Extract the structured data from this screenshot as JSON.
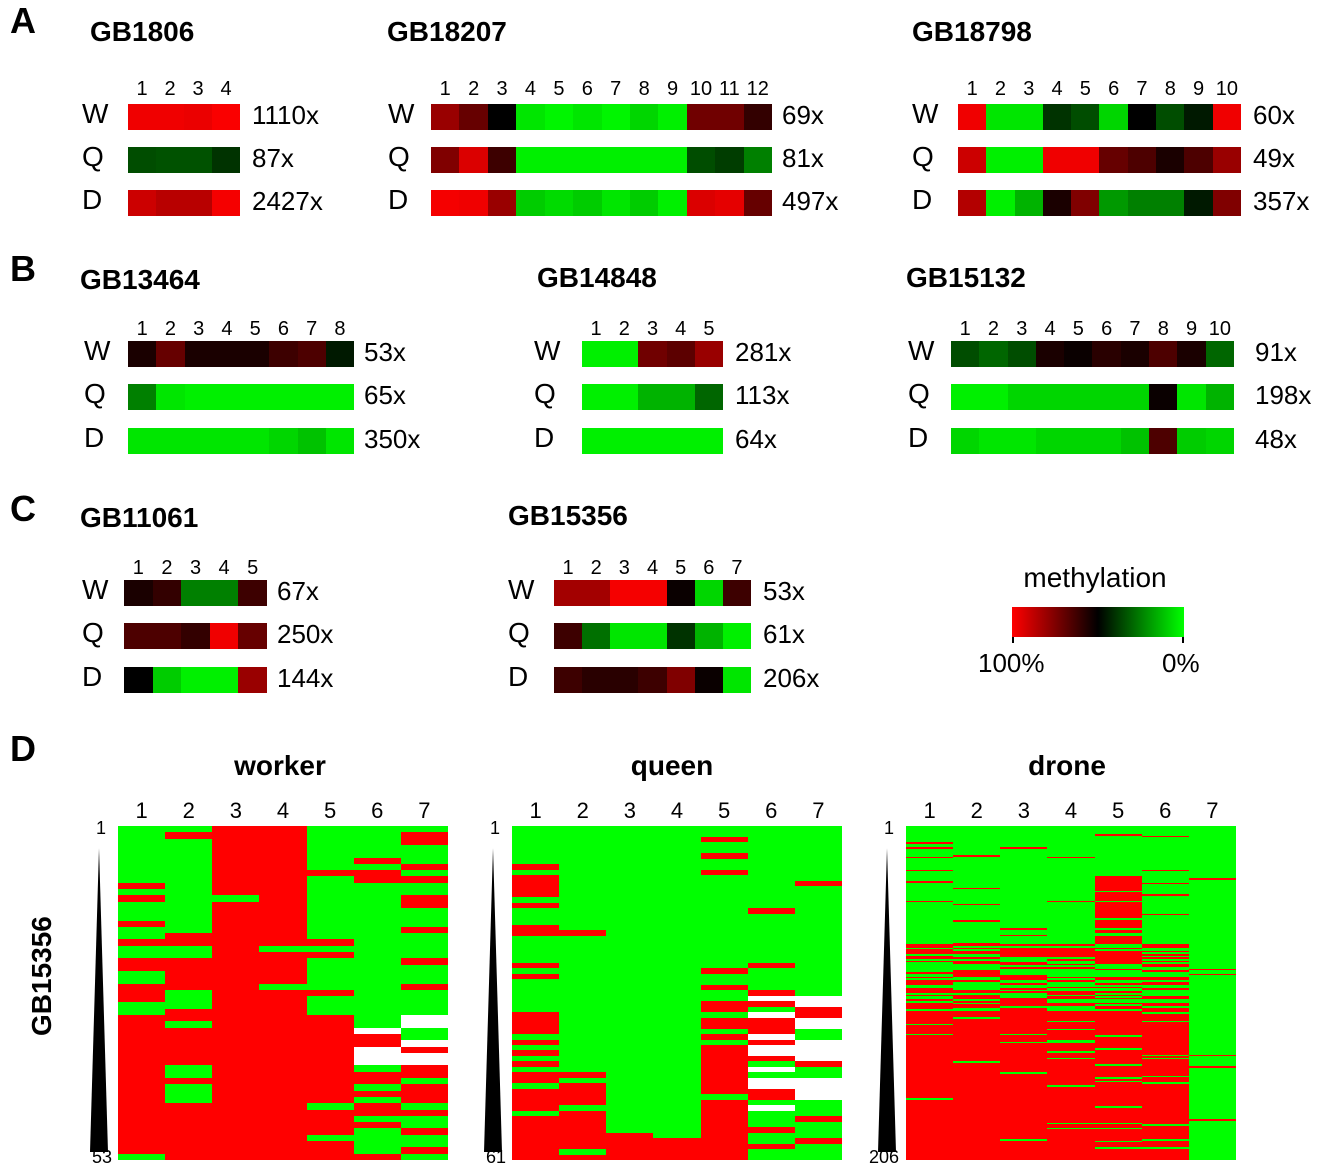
{
  "panels": {
    "A": "A",
    "B": "B",
    "C": "C",
    "D": "D"
  },
  "castes": [
    "W",
    "Q",
    "D"
  ],
  "colors": {
    "methylated": "#ff0000",
    "mid": "#000000",
    "unmethylated": "#00ff00"
  },
  "genes": [
    {
      "id": "GB1806",
      "positions": [
        "1",
        "2",
        "3",
        "4"
      ],
      "rows": [
        {
          "caste": "W",
          "coverage": "1110x",
          "levels": [
            0.97,
            0.97,
            0.96,
            0.99
          ]
        },
        {
          "caste": "Q",
          "coverage": "87x",
          "levels": [
            0.35,
            0.34,
            0.34,
            0.4
          ]
        },
        {
          "caste": "D",
          "coverage": "2427x",
          "levels": [
            0.9,
            0.86,
            0.86,
            0.98
          ]
        }
      ]
    },
    {
      "id": "GB18207",
      "positions": [
        "1",
        "2",
        "3",
        "4",
        "5",
        "6",
        "7",
        "8",
        "9",
        "10",
        "11",
        "12"
      ],
      "rows": [
        {
          "caste": "W",
          "coverage": "69x",
          "levels": [
            0.8,
            0.7,
            0.5,
            0.05,
            0.02,
            0.05,
            0.02,
            0.08,
            0.03,
            0.72,
            0.72,
            0.6
          ]
        },
        {
          "caste": "Q",
          "coverage": "81x",
          "levels": [
            0.75,
            0.93,
            0.62,
            0.03,
            0.03,
            0.03,
            0.03,
            0.03,
            0.03,
            0.35,
            0.38,
            0.25
          ]
        },
        {
          "caste": "D",
          "coverage": "497x",
          "levels": [
            0.98,
            0.97,
            0.8,
            0.1,
            0.07,
            0.1,
            0.05,
            0.1,
            0.03,
            0.93,
            0.95,
            0.7
          ]
        }
      ]
    },
    {
      "id": "GB18798",
      "positions": [
        "1",
        "2",
        "3",
        "4",
        "5",
        "6",
        "7",
        "8",
        "9",
        "10"
      ],
      "rows": [
        {
          "caste": "W",
          "coverage": "60x",
          "levels": [
            0.97,
            0.05,
            0.05,
            0.4,
            0.35,
            0.08,
            0.5,
            0.35,
            0.45,
            0.97
          ]
        },
        {
          "caste": "Q",
          "coverage": "49x",
          "levels": [
            0.9,
            0.03,
            0.03,
            0.97,
            0.97,
            0.7,
            0.65,
            0.55,
            0.65,
            0.8
          ]
        },
        {
          "caste": "D",
          "coverage": "357x",
          "levels": [
            0.85,
            0.03,
            0.15,
            0.55,
            0.75,
            0.2,
            0.25,
            0.25,
            0.45,
            0.75
          ]
        }
      ]
    },
    {
      "id": "GB13464",
      "positions": [
        "1",
        "2",
        "3",
        "4",
        "5",
        "6",
        "7",
        "8"
      ],
      "rows": [
        {
          "caste": "W",
          "coverage": "53x",
          "levels": [
            0.55,
            0.7,
            0.55,
            0.55,
            0.55,
            0.62,
            0.65,
            0.45
          ]
        },
        {
          "caste": "Q",
          "coverage": "65x",
          "levels": [
            0.25,
            0.05,
            0.03,
            0.03,
            0.03,
            0.03,
            0.03,
            0.03
          ]
        },
        {
          "caste": "D",
          "coverage": "350x",
          "levels": [
            0.05,
            0.05,
            0.05,
            0.05,
            0.05,
            0.08,
            0.12,
            0.05
          ]
        }
      ]
    },
    {
      "id": "GB14848",
      "positions": [
        "1",
        "2",
        "3",
        "4",
        "5"
      ],
      "rows": [
        {
          "caste": "W",
          "coverage": "281x",
          "levels": [
            0.03,
            0.03,
            0.72,
            0.68,
            0.8
          ]
        },
        {
          "caste": "Q",
          "coverage": "113x",
          "levels": [
            0.03,
            0.03,
            0.15,
            0.15,
            0.3
          ]
        },
        {
          "caste": "D",
          "coverage": "64x",
          "levels": [
            0.03,
            0.03,
            0.03,
            0.03,
            0.03
          ]
        }
      ]
    },
    {
      "id": "GB15132",
      "positions": [
        "1",
        "2",
        "3",
        "4",
        "5",
        "6",
        "7",
        "8",
        "9",
        "10"
      ],
      "rows": [
        {
          "caste": "W",
          "coverage": "91x",
          "levels": [
            0.35,
            0.3,
            0.35,
            0.55,
            0.52,
            0.58,
            0.55,
            0.65,
            0.55,
            0.3
          ]
        },
        {
          "caste": "Q",
          "coverage": "198x",
          "levels": [
            0.03,
            0.03,
            0.08,
            0.08,
            0.08,
            0.08,
            0.08,
            0.52,
            0.05,
            0.15
          ]
        },
        {
          "caste": "D",
          "coverage": "48x",
          "levels": [
            0.08,
            0.05,
            0.05,
            0.08,
            0.08,
            0.08,
            0.12,
            0.65,
            0.1,
            0.08
          ]
        }
      ]
    },
    {
      "id": "GB11061",
      "positions": [
        "1",
        "2",
        "3",
        "4",
        "5"
      ],
      "rows": [
        {
          "caste": "W",
          "coverage": "67x",
          "levels": [
            0.55,
            0.6,
            0.25,
            0.25,
            0.62
          ]
        },
        {
          "caste": "Q",
          "coverage": "250x",
          "levels": [
            0.65,
            0.65,
            0.6,
            0.97,
            0.7
          ]
        },
        {
          "caste": "D",
          "coverage": "144x",
          "levels": [
            0.5,
            0.1,
            0.03,
            0.03,
            0.8
          ]
        }
      ]
    },
    {
      "id": "GB15356",
      "positions": [
        "1",
        "2",
        "3",
        "4",
        "5",
        "6",
        "7"
      ],
      "rows": [
        {
          "caste": "W",
          "coverage": "53x",
          "levels": [
            0.82,
            0.82,
            0.98,
            0.98,
            0.52,
            0.08,
            0.62
          ]
        },
        {
          "caste": "Q",
          "coverage": "61x",
          "levels": [
            0.62,
            0.28,
            0.05,
            0.05,
            0.4,
            0.15,
            0.03
          ]
        },
        {
          "caste": "D",
          "coverage": "206x",
          "levels": [
            0.62,
            0.58,
            0.58,
            0.62,
            0.75,
            0.52,
            0.05
          ]
        }
      ]
    }
  ],
  "legend": {
    "title": "methylation",
    "left_label": "100%",
    "right_label": "0%"
  },
  "panel_d": {
    "gene_label": "GB15356",
    "columns": [
      "1",
      "2",
      "3",
      "4",
      "5",
      "6",
      "7"
    ],
    "heatmaps": [
      {
        "title": "worker",
        "first_read": "1",
        "last_read": "53"
      },
      {
        "title": "queen",
        "first_read": "1",
        "last_read": "61"
      },
      {
        "title": "drone",
        "first_read": "1",
        "last_read": "206"
      }
    ]
  }
}
